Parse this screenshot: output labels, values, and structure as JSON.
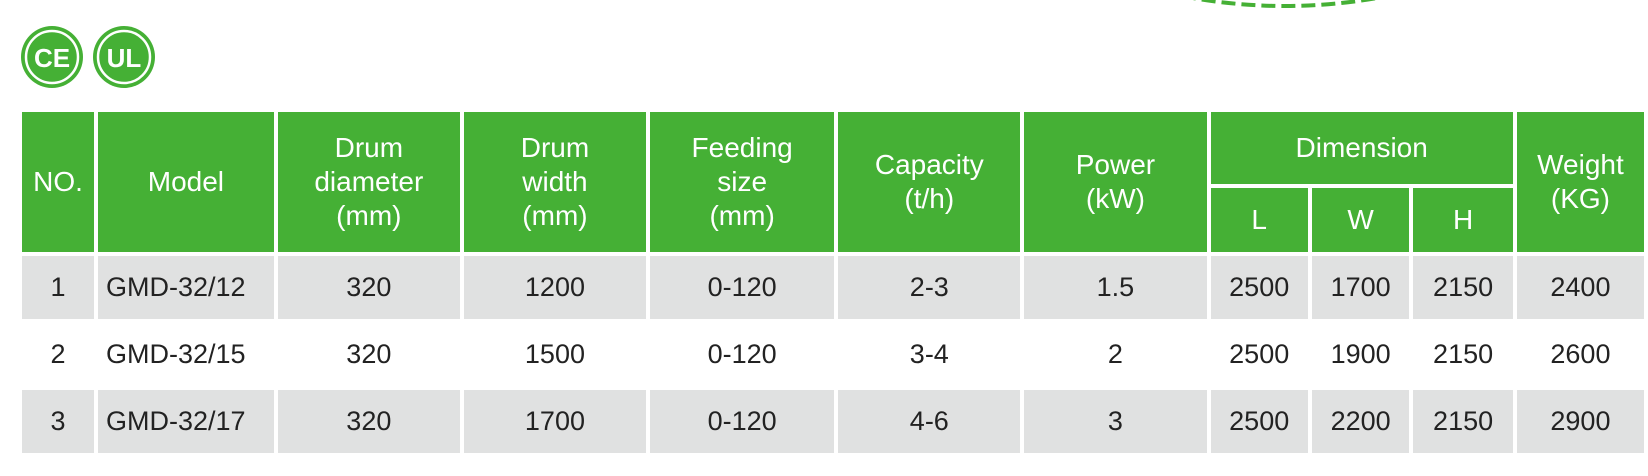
{
  "certifications": [
    {
      "name": "ce-mark",
      "text": "CE"
    },
    {
      "name": "ul-mark",
      "text": "UL"
    }
  ],
  "colors": {
    "header_green": "#45b035",
    "row_shade": "#e0e1e1",
    "text": "#222222"
  },
  "table": {
    "headers": {
      "no": "NO.",
      "model": "Model",
      "drum_diameter": [
        "Drum",
        "diameter",
        "(mm)"
      ],
      "drum_width": [
        "Drum",
        "width",
        "(mm)"
      ],
      "feeding_size": [
        "Feeding",
        "size",
        "(mm)"
      ],
      "capacity": [
        "Capacity",
        "(t/h)"
      ],
      "power": [
        "Power",
        "(kW)"
      ],
      "dimension": "Dimension",
      "dimension_sub": [
        "L",
        "W",
        "H"
      ],
      "weight": [
        "Weight",
        "(KG)"
      ]
    },
    "rows": [
      {
        "no": "1",
        "model": "GMD-32/12",
        "drum_diameter": "320",
        "drum_width": "1200",
        "feeding_size": "0-120",
        "capacity": "2-3",
        "power": "1.5",
        "l": "2500",
        "w": "1700",
        "h": "2150",
        "weight": "2400"
      },
      {
        "no": "2",
        "model": "GMD-32/15",
        "drum_diameter": "320",
        "drum_width": "1500",
        "feeding_size": "0-120",
        "capacity": "3-4",
        "power": "2",
        "l": "2500",
        "w": "1900",
        "h": "2150",
        "weight": "2600"
      },
      {
        "no": "3",
        "model": "GMD-32/17",
        "drum_diameter": "320",
        "drum_width": "1700",
        "feeding_size": "0-120",
        "capacity": "4-6",
        "power": "3",
        "l": "2500",
        "w": "2200",
        "h": "2150",
        "weight": "2900"
      }
    ]
  }
}
